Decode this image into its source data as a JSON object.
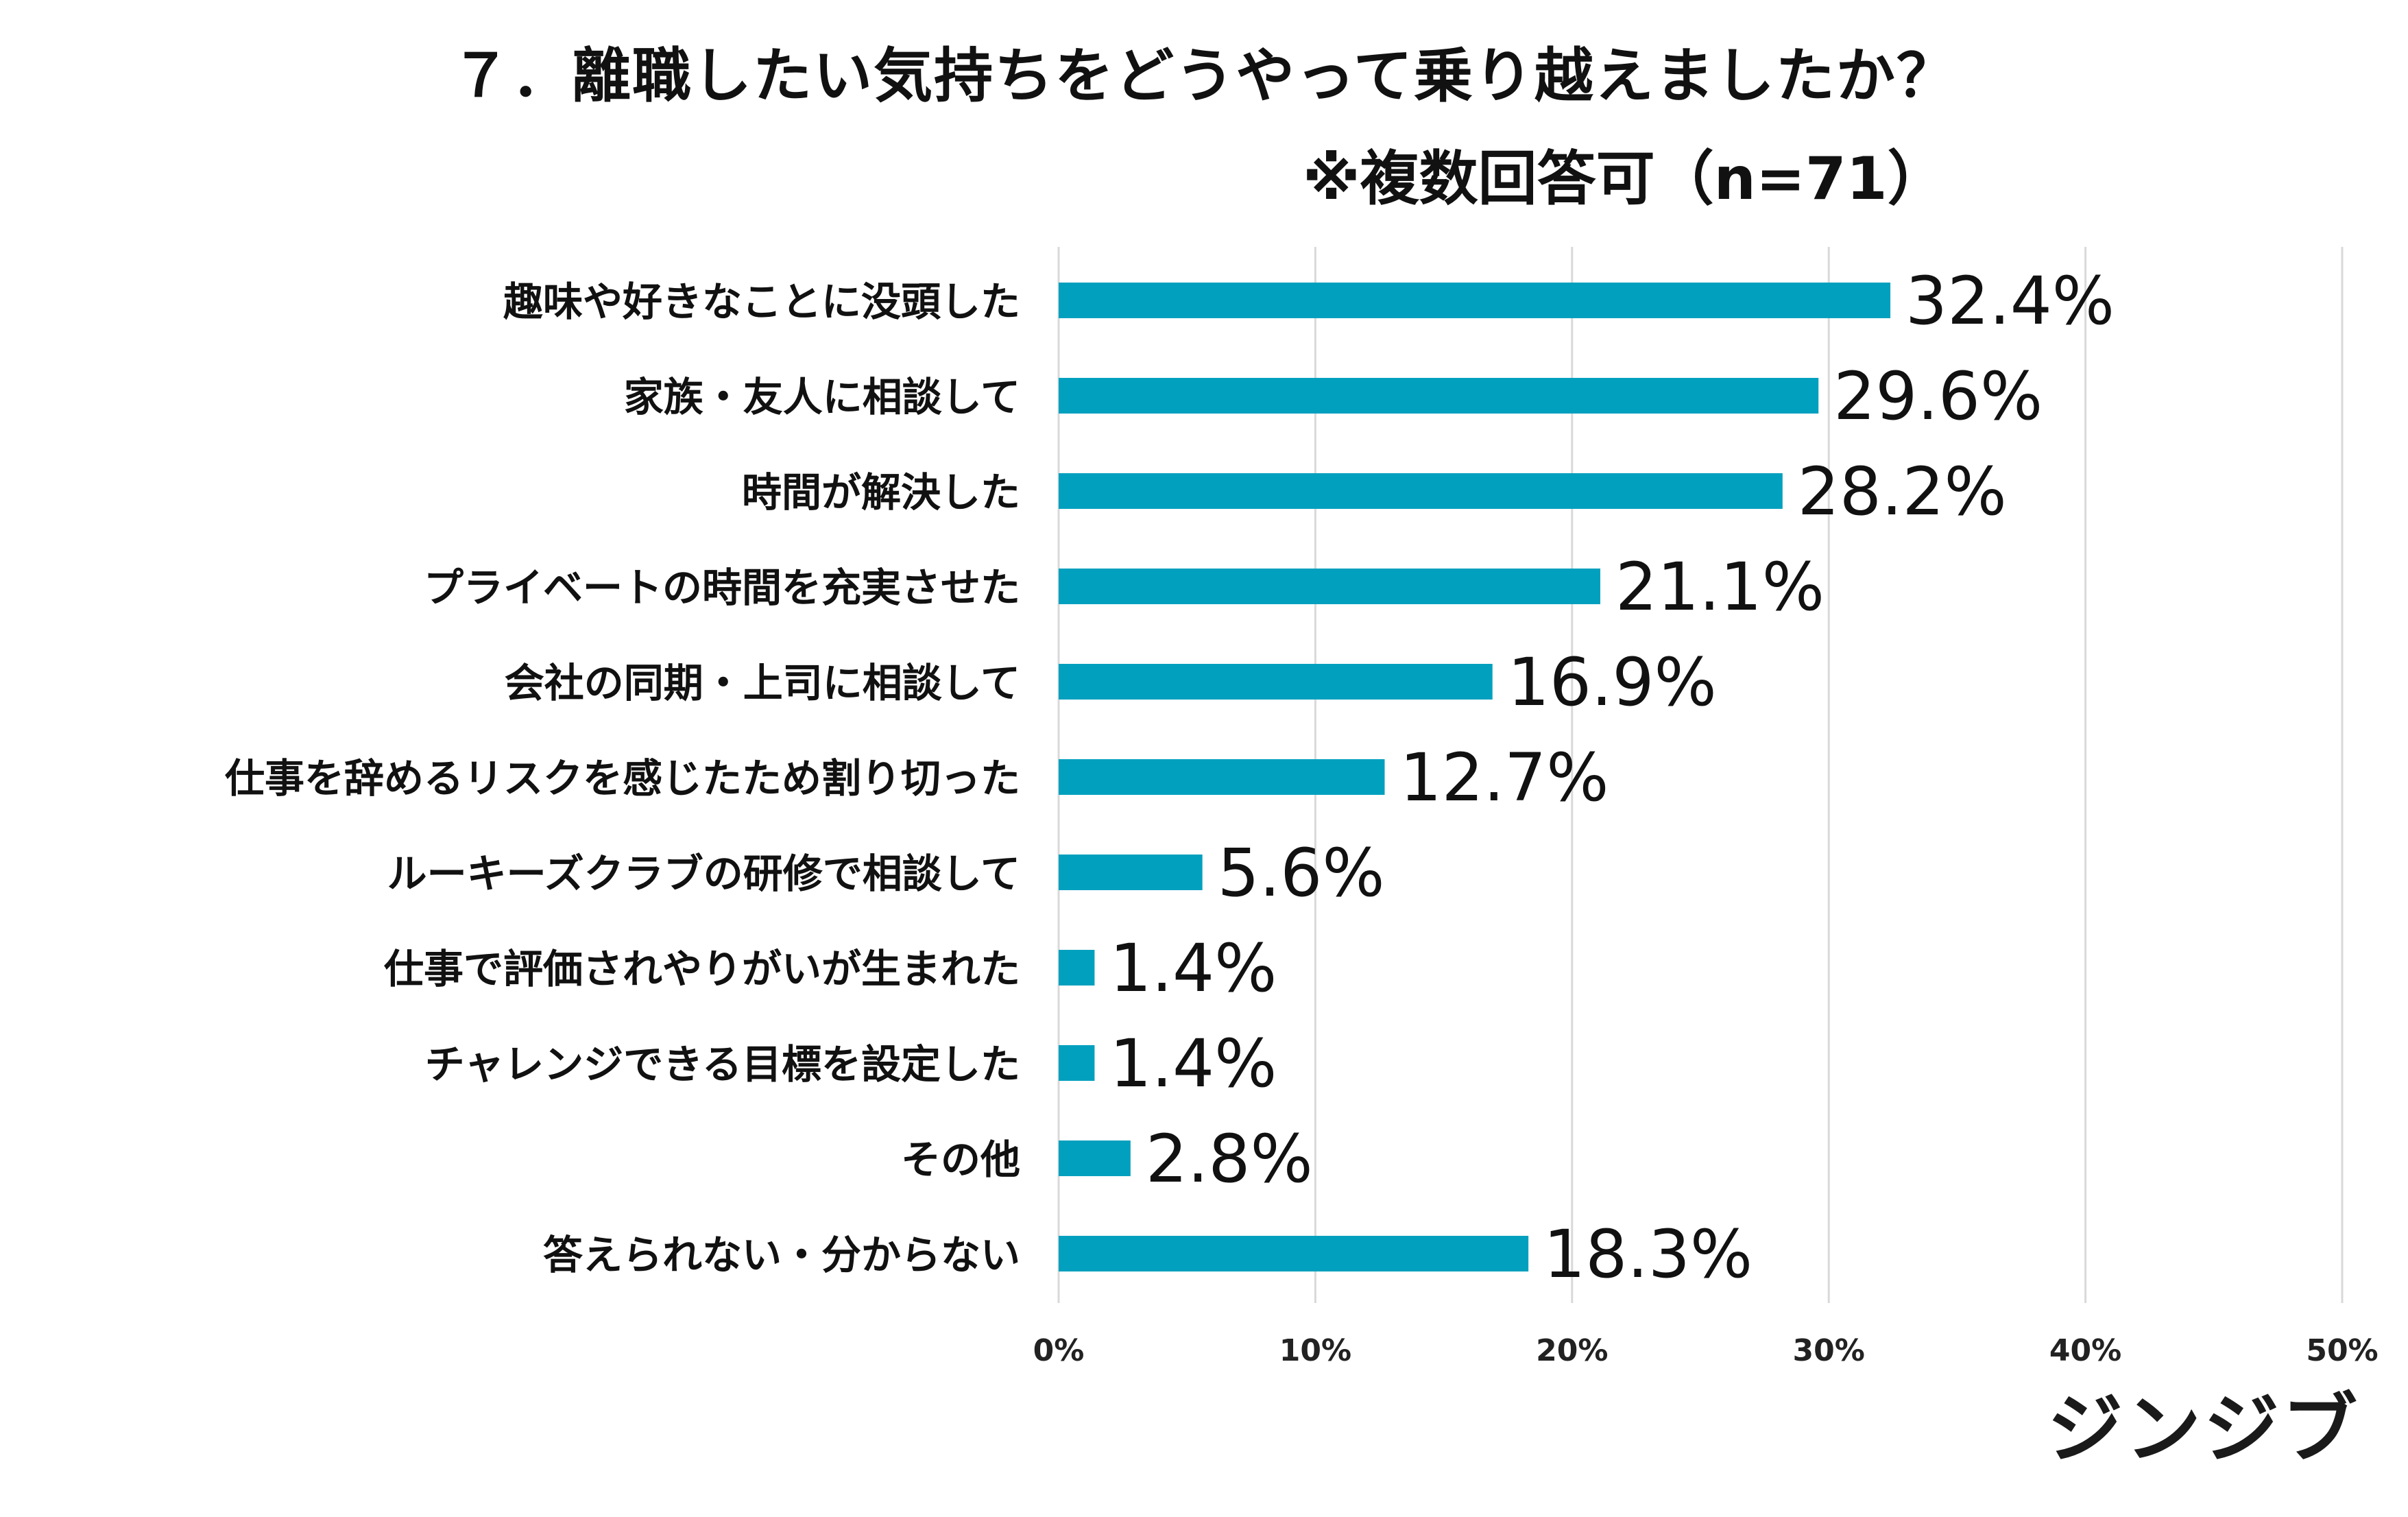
{
  "chart_data": {
    "type": "bar",
    "orientation": "horizontal",
    "title": "７．離職したい気持ちをどうやって乗り越えましたか？",
    "subtitle": "※複数回答可（n=71）",
    "categories": [
      "趣味や好きなことに没頭した",
      "家族・友人に相談して",
      "時間が解決した",
      "プライベートの時間を充実させた",
      "会社の同期・上司に相談して",
      "仕事を辞めるリスクを感じたため割り切った",
      "ルーキーズクラブの研修で相談して",
      "仕事で評価されやりがいが生まれた",
      "チャレンジできる目標を設定した",
      "その他",
      "答えられない・分からない"
    ],
    "values": [
      32.4,
      29.6,
      28.2,
      21.1,
      16.9,
      12.7,
      5.6,
      1.4,
      1.4,
      2.8,
      18.3
    ],
    "value_labels": [
      "32.4%",
      "29.6%",
      "28.2%",
      "21.1%",
      "16.9%",
      "12.7%",
      "5.6%",
      "1.4%",
      "1.4%",
      "2.8%",
      "18.3%"
    ],
    "xlim": [
      0,
      50
    ],
    "xticks": [
      0,
      10,
      20,
      30,
      40,
      50
    ],
    "xtick_labels": [
      "0%",
      "10%",
      "20%",
      "30%",
      "40%",
      "50%"
    ],
    "grid": true,
    "bar_color": "#00A0BE",
    "grid_color": "#D9D9D9"
  },
  "brand": {
    "logo_text": "ジンジブ"
  }
}
